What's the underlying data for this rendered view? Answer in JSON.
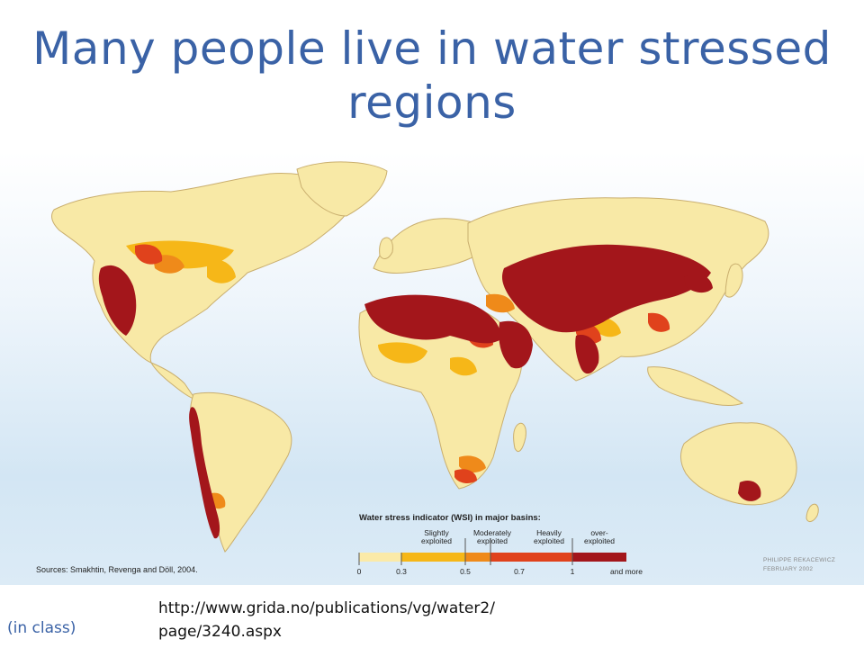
{
  "slide": {
    "title_line1": "Many people live in water stressed",
    "title_line2": "regions",
    "footer_left": "(in class)",
    "footer_link_line1": "http://www.grida.no/publications/vg/water2/",
    "footer_link_line2": "page/3240.aspx"
  },
  "map": {
    "sources": "Sources:  Smakhtin, Revenga and Döll, 2004.",
    "credit_line1": "PHILIPPE REKACEWICZ",
    "credit_line2": "FEBRUARY 2002",
    "legend": {
      "title": "Water stress indicator (WSI) in major basins:",
      "categories": [
        {
          "line1": "Slightly",
          "line2": "exploited"
        },
        {
          "line1": "Moderately",
          "line2": "exploited"
        },
        {
          "line1": "Heavily",
          "line2": "exploited"
        },
        {
          "line1": "over-",
          "line2": "exploited"
        }
      ],
      "ticks": [
        "0",
        "0.3",
        "0.5",
        "0.7",
        "1",
        "and more"
      ],
      "colors": [
        "#fbeaa8",
        "#f6b718",
        "#ef8a1a",
        "#e0421c",
        "#a3161b"
      ]
    },
    "colors": {
      "land": "#f8e9a6",
      "coast": "#c9ae6e",
      "ocean_top": "#ffffff",
      "ocean_bottom": "#d3e6f4",
      "title": "#3a62a6"
    }
  }
}
